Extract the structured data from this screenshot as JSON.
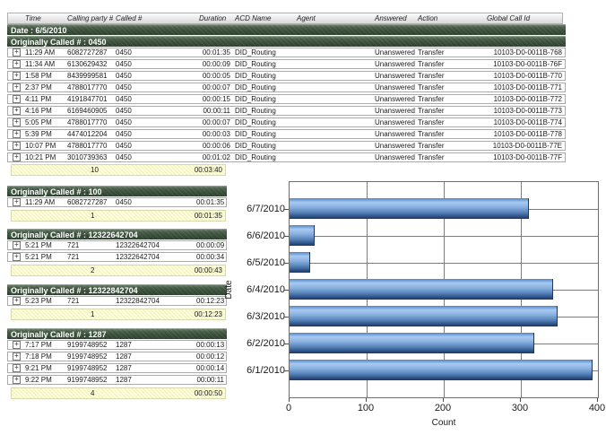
{
  "header": {
    "columns": [
      "",
      "Time",
      "Calling party #",
      "Called #",
      "Duration",
      "ACD Name",
      "Agent",
      "Answered",
      "Action",
      "Global Call Id"
    ]
  },
  "date_group_label": "Date : 6/5/2010",
  "sections": [
    {
      "title": "Originally Called # : 0450",
      "type": "full",
      "rows": [
        {
          "time": "11:29 AM",
          "calling": "6082727287",
          "called": "0450",
          "duration": "00:01:35",
          "acd": "DID_Routing",
          "agent": "",
          "answered": "Unanswered",
          "action": "Transfer",
          "global_call_id": "10103-D0-0011B-768"
        },
        {
          "time": "11:34 AM",
          "calling": "6130629432",
          "called": "0450",
          "duration": "00:00:09",
          "acd": "DID_Routing",
          "agent": "",
          "answered": "Unanswered",
          "action": "Transfer",
          "global_call_id": "10103-D0-0011B-76F"
        },
        {
          "time": "1:58 PM",
          "calling": "8439999581",
          "called": "0450",
          "duration": "00:00:05",
          "acd": "DID_Routing",
          "agent": "",
          "answered": "Unanswered",
          "action": "Transfer",
          "global_call_id": "10103-D0-0011B-770"
        },
        {
          "time": "2:37 PM",
          "calling": "4788017770",
          "called": "0450",
          "duration": "00:00:07",
          "acd": "DID_Routing",
          "agent": "",
          "answered": "Unanswered",
          "action": "Transfer",
          "global_call_id": "10103-D0-0011B-771"
        },
        {
          "time": "4:11 PM",
          "calling": "4191847701",
          "called": "0450",
          "duration": "00:00:15",
          "acd": "DID_Routing",
          "agent": "",
          "answered": "Unanswered",
          "action": "Transfer",
          "global_call_id": "10103-D0-0011B-772"
        },
        {
          "time": "4:16 PM",
          "calling": "6169460905",
          "called": "0450",
          "duration": "00:00:11",
          "acd": "DID_Routing",
          "agent": "",
          "answered": "Unanswered",
          "action": "Transfer",
          "global_call_id": "10103-D0-0011B-773"
        },
        {
          "time": "5:05 PM",
          "calling": "4788017770",
          "called": "0450",
          "duration": "00:00:07",
          "acd": "DID_Routing",
          "agent": "",
          "answered": "Unanswered",
          "action": "Transfer",
          "global_call_id": "10103-D0-0011B-774"
        },
        {
          "time": "5:39 PM",
          "calling": "4474012204",
          "called": "0450",
          "duration": "00:00:03",
          "acd": "DID_Routing",
          "agent": "",
          "answered": "Unanswered",
          "action": "Transfer",
          "global_call_id": "10103-D0-0011B-778"
        },
        {
          "time": "10:07 PM",
          "calling": "4788017770",
          "called": "0450",
          "duration": "00:00:06",
          "acd": "DID_Routing",
          "agent": "",
          "answered": "Unanswered",
          "action": "Transfer",
          "global_call_id": "10103-D0-0011B-77E"
        },
        {
          "time": "10:21 PM",
          "calling": "3010739363",
          "called": "0450",
          "duration": "00:01:02",
          "acd": "DID_Routing",
          "agent": "",
          "answered": "Unanswered",
          "action": "Transfer",
          "global_call_id": "10103-D0-0011B-77F"
        }
      ],
      "summary": {
        "count": "10",
        "total": "00:03:40"
      }
    },
    {
      "title": "Originally Called # : 100",
      "type": "compact",
      "rows": [
        {
          "time": "11:29 AM",
          "calling": "6082727287",
          "called": "0450",
          "duration": "00:01:35"
        }
      ],
      "summary": {
        "count": "1",
        "total": "00:01:35"
      }
    },
    {
      "title": "Originally Called # : 12322642704",
      "type": "compact",
      "rows": [
        {
          "time": "5:21 PM",
          "calling": "721",
          "called": "12322642704",
          "duration": "00:00:09"
        },
        {
          "time": "5:21 PM",
          "calling": "721",
          "called": "12322642704",
          "duration": "00:00:34"
        }
      ],
      "summary": {
        "count": "2",
        "total": "00:00:43"
      }
    },
    {
      "title": "Originally Called # : 12322842704",
      "type": "compact",
      "rows": [
        {
          "time": "5:23 PM",
          "calling": "721",
          "called": "12322842704",
          "duration": "00:12:23"
        }
      ],
      "summary": {
        "count": "1",
        "total": "00:12:23"
      }
    },
    {
      "title": "Originally Called # : 1287",
      "type": "compact",
      "rows": [
        {
          "time": "7:17 PM",
          "calling": "9199748952",
          "called": "1287",
          "duration": "00:00:13"
        },
        {
          "time": "7:18 PM",
          "calling": "9199748952",
          "called": "1287",
          "duration": "00:00:12"
        },
        {
          "time": "9:21 PM",
          "calling": "9199748952",
          "called": "1287",
          "duration": "00:00:14"
        },
        {
          "time": "9:22 PM",
          "calling": "9199748952",
          "called": "1287",
          "duration": "00:00:11"
        }
      ],
      "summary": {
        "count": "4",
        "total": "00:00:50"
      }
    }
  ],
  "chart_data": {
    "type": "bar",
    "orientation": "horizontal",
    "categories": [
      "6/7/2010",
      "6/6/2010",
      "6/5/2010",
      "6/4/2010",
      "6/3/2010",
      "6/2/2010",
      "6/1/2010"
    ],
    "values": [
      310,
      33,
      27,
      342,
      348,
      318,
      393
    ],
    "xlabel": "Count",
    "ylabel": "Date",
    "xlim": [
      0,
      400
    ],
    "xticks": [
      0,
      100,
      200,
      300,
      400
    ],
    "grid": true,
    "legend": "none",
    "bar_color": "#6f9ad1"
  },
  "colors": {
    "section_header_green": "#3c513c",
    "summary_yellow": "#ffffd8",
    "bar_blue": "#6f9ad1",
    "grid_line": "#7d7d7d"
  }
}
